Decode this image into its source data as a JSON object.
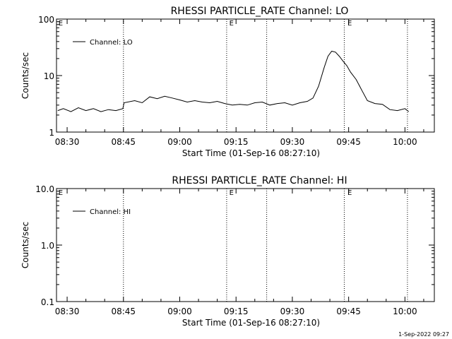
{
  "chart_data": [
    {
      "type": "line",
      "title": "RHESSI PARTICLE_RATE Channel: LO",
      "xlabel": "Start Time (01-Sep-16 08:27:10)",
      "ylabel": "Counts/sec",
      "yscale": "log",
      "ylim": [
        1,
        100
      ],
      "xlim": [
        "08:27:10",
        "10:07:50"
      ],
      "x_ticks": [
        "08:30",
        "08:45",
        "09:00",
        "09:15",
        "09:30",
        "09:45",
        "10:00"
      ],
      "y_ticks": [
        "1",
        "10",
        "100"
      ],
      "vlines": [
        "08:45:00",
        "09:12:30",
        "09:23:10",
        "09:43:50",
        "10:00:40"
      ],
      "markers": [
        {
          "label": "E",
          "time": "08:27:30"
        },
        {
          "label": "E",
          "time": "09:13:00"
        },
        {
          "label": "E",
          "time": "09:44:30"
        }
      ],
      "series": [
        {
          "name": "Channel: LO",
          "x": [
            "08:27:30",
            "08:29:00",
            "08:31:00",
            "08:33:00",
            "08:35:00",
            "08:37:00",
            "08:39:00",
            "08:41:00",
            "08:43:00",
            "08:44:50",
            "08:45:10",
            "08:48:00",
            "08:50:00",
            "08:52:00",
            "08:54:00",
            "08:56:00",
            "08:58:00",
            "09:00:00",
            "09:02:00",
            "09:04:00",
            "09:06:00",
            "09:08:00",
            "09:10:00",
            "09:12:00",
            "09:14:00",
            "09:16:00",
            "09:18:00",
            "09:20:00",
            "09:22:00",
            "09:24:00",
            "09:26:00",
            "09:28:00",
            "09:30:00",
            "09:32:00",
            "09:34:00",
            "09:35:30",
            "09:37:00",
            "09:38:30",
            "09:39:30",
            "09:40:30",
            "09:41:30",
            "09:42:30",
            "09:43:30",
            "09:44:30",
            "09:45:30",
            "09:47:00",
            "09:48:30",
            "09:50:00",
            "09:52:00",
            "09:54:00",
            "09:56:00",
            "09:58:00",
            "10:00:00",
            "10:01:00"
          ],
          "values": [
            2.4,
            2.6,
            2.3,
            2.7,
            2.4,
            2.6,
            2.3,
            2.5,
            2.4,
            2.6,
            3.3,
            3.6,
            3.3,
            4.2,
            3.9,
            4.3,
            4.0,
            3.7,
            3.4,
            3.6,
            3.4,
            3.3,
            3.5,
            3.2,
            3.0,
            3.1,
            3.0,
            3.3,
            3.4,
            3.0,
            3.2,
            3.3,
            3.0,
            3.3,
            3.5,
            4.0,
            6.5,
            14.0,
            22.0,
            27.0,
            26.0,
            22.0,
            18.0,
            15.0,
            11.5,
            8.5,
            5.5,
            3.6,
            3.2,
            3.1,
            2.5,
            2.4,
            2.6,
            2.3
          ]
        }
      ],
      "legend": "top-left"
    },
    {
      "type": "line",
      "title": "RHESSI PARTICLE_RATE Channel: HI",
      "xlabel": "Start Time (01-Sep-16 08:27:10)",
      "ylabel": "Counts/sec",
      "yscale": "log",
      "ylim": [
        0.1,
        10
      ],
      "xlim": [
        "08:27:10",
        "10:07:50"
      ],
      "x_ticks": [
        "08:30",
        "08:45",
        "09:00",
        "09:15",
        "09:30",
        "09:45",
        "10:00"
      ],
      "y_ticks": [
        "0.1",
        "1.0",
        "10.0"
      ],
      "vlines": [
        "08:45:00",
        "09:12:30",
        "09:23:10",
        "09:43:50",
        "10:00:40"
      ],
      "markers": [
        {
          "label": "E",
          "time": "08:27:30"
        },
        {
          "label": "E",
          "time": "09:13:00"
        },
        {
          "label": "E",
          "time": "09:44:30"
        }
      ],
      "series": [
        {
          "name": "Channel: HI",
          "x": [],
          "values": []
        }
      ],
      "legend": "top-left"
    }
  ],
  "footer": {
    "timestamp": "1-Sep-2022 09:27"
  }
}
